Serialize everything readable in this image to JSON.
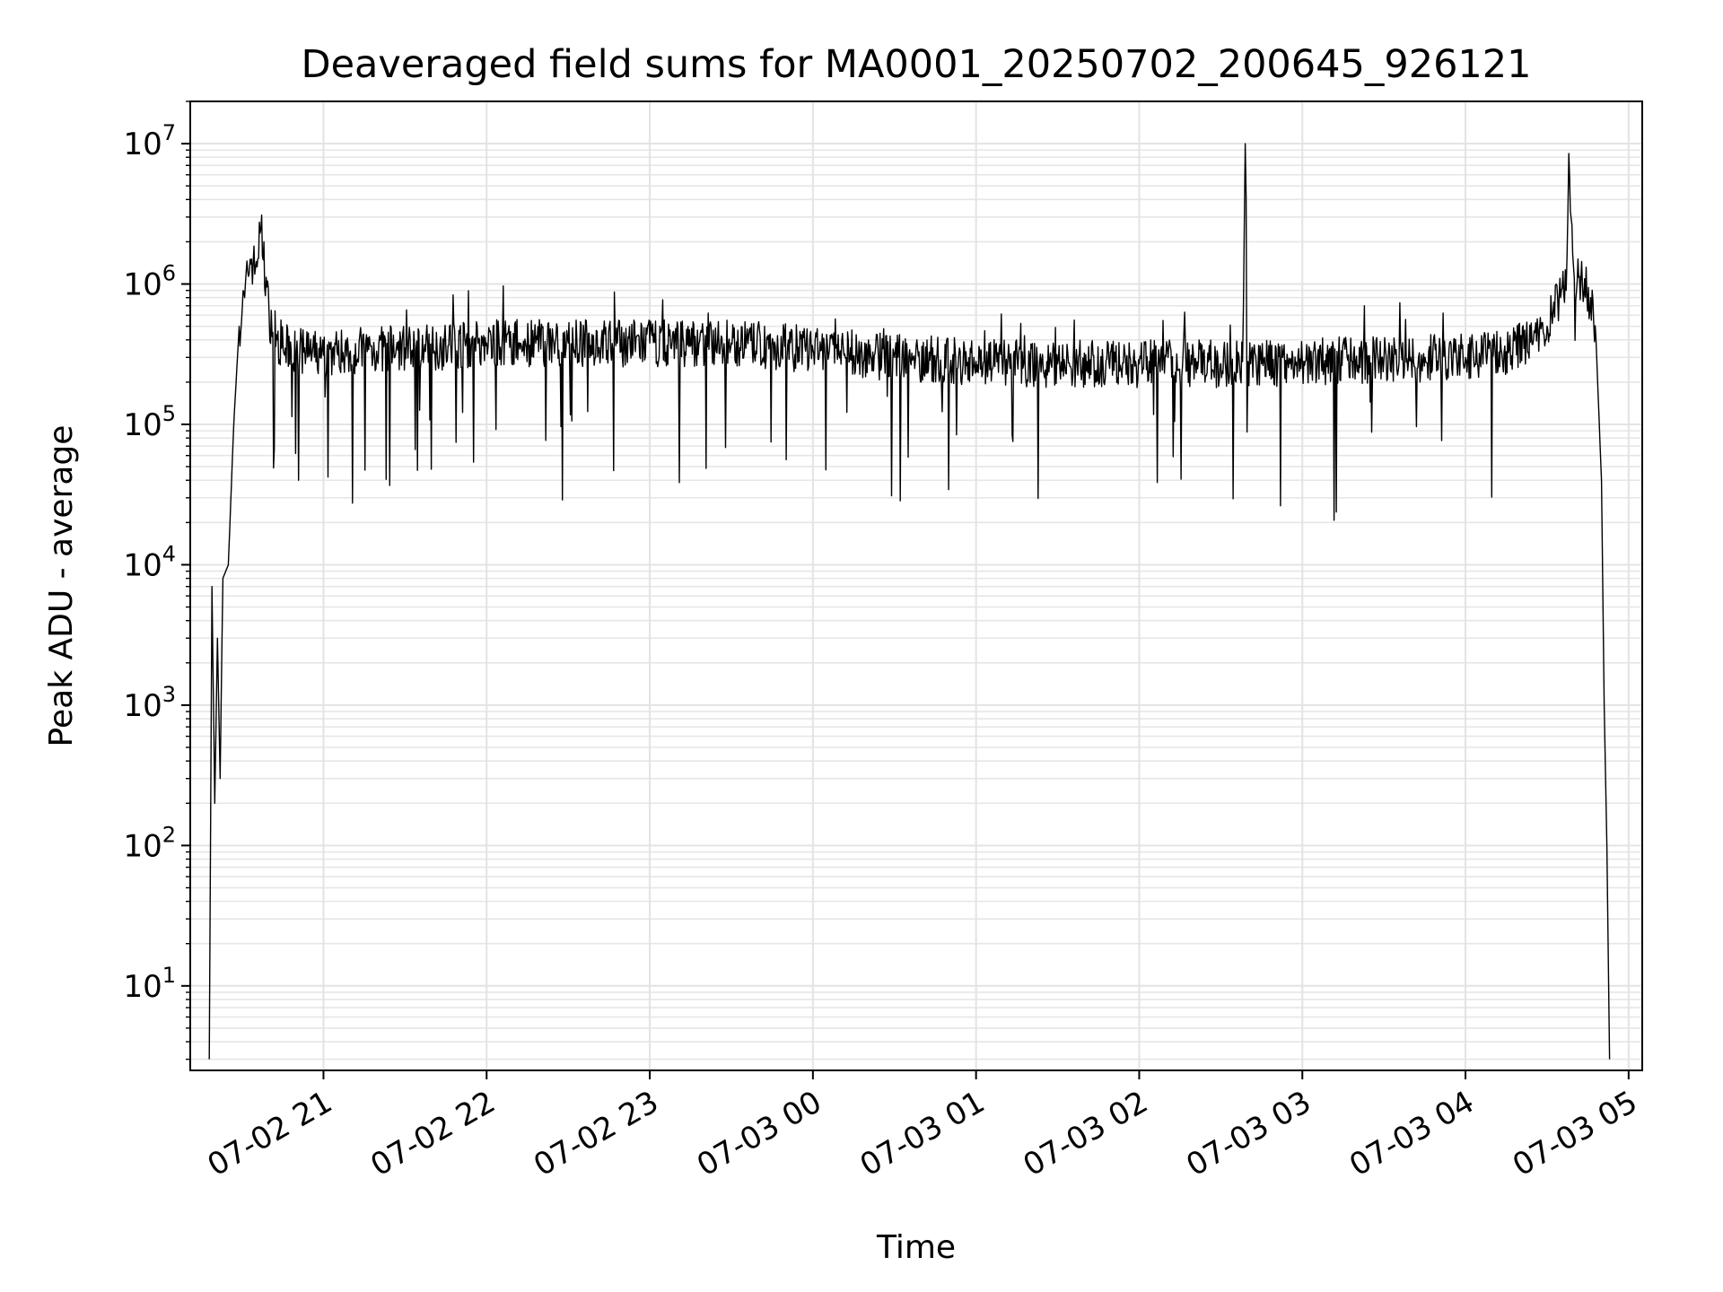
{
  "chart_data": {
    "type": "line",
    "title": "Deaveraged field sums for MA0001_20250702_200645_926121",
    "xlabel": "Time",
    "ylabel": "Peak ADU - average",
    "yscale": "log",
    "xlim": [
      "07-02 20:11",
      "07-03 05:05"
    ],
    "ylim": [
      2.5,
      20000000
    ],
    "grid": true,
    "line_color": "#000000",
    "x_ticks": [
      {
        "label": "07-02 21",
        "value": "07-02 21:00"
      },
      {
        "label": "07-02 22",
        "value": "07-02 22:00"
      },
      {
        "label": "07-02 23",
        "value": "07-02 23:00"
      },
      {
        "label": "07-03 00",
        "value": "07-03 00:00"
      },
      {
        "label": "07-03 01",
        "value": "07-03 01:00"
      },
      {
        "label": "07-03 02",
        "value": "07-03 02:00"
      },
      {
        "label": "07-03 03",
        "value": "07-03 03:00"
      },
      {
        "label": "07-03 04",
        "value": "07-03 04:00"
      },
      {
        "label": "07-03 05",
        "value": "07-03 05:00"
      }
    ],
    "y_ticks": [
      {
        "base": "10",
        "exp": "1",
        "value": 10
      },
      {
        "base": "10",
        "exp": "2",
        "value": 100
      },
      {
        "base": "10",
        "exp": "3",
        "value": 1000
      },
      {
        "base": "10",
        "exp": "4",
        "value": 10000
      },
      {
        "base": "10",
        "exp": "5",
        "value": 100000
      },
      {
        "base": "10",
        "exp": "6",
        "value": 1000000
      },
      {
        "base": "10",
        "exp": "7",
        "value": 10000000
      }
    ],
    "series": [
      {
        "x": [
          "07-02 20:18",
          "07-02 20:19",
          "07-02 20:20",
          "07-02 20:21",
          "07-02 20:22",
          "07-02 20:23",
          "07-02 20:25",
          "07-02 20:27",
          "07-02 20:29",
          "07-02 20:31",
          "07-02 20:33",
          "07-02 20:35",
          "07-02 20:37",
          "07-02 20:40",
          "07-02 20:43",
          "07-02 20:46",
          "07-02 20:50",
          "07-02 20:55",
          "07-02 21:00",
          "07-02 21:05",
          "07-02 21:15",
          "07-02 21:30",
          "07-02 21:45",
          "07-02 22:00",
          "07-02 22:30",
          "07-02 23:00",
          "07-02 23:30",
          "07-03 00:00",
          "07-03 00:30",
          "07-03 01:00",
          "07-03 01:30",
          "07-03 02:00",
          "07-03 02:30",
          "07-03 02:38",
          "07-03 02:39",
          "07-03 02:40",
          "07-03 02:41",
          "07-03 02:45",
          "07-03 03:00",
          "07-03 03:30",
          "07-03 04:00",
          "07-03 04:15",
          "07-03 04:25",
          "07-03 04:30",
          "07-03 04:35",
          "07-03 04:37",
          "07-03 04:38",
          "07-03 04:40",
          "07-03 04:43",
          "07-03 04:46",
          "07-03 04:48",
          "07-03 04:50",
          "07-03 04:51",
          "07-03 04:52",
          "07-03 04:53"
        ],
        "values": [
          3,
          7000,
          200,
          3000,
          300,
          8000,
          10000,
          100000,
          500000,
          800000,
          1500000,
          1300000,
          2500000,
          600000,
          400000,
          350000,
          330000,
          320000,
          310000,
          330000,
          340000,
          350000,
          360000,
          380000,
          380000,
          380000,
          380000,
          340000,
          300000,
          280000,
          270000,
          270000,
          270000,
          280000,
          10000000,
          280000,
          270000,
          270000,
          280000,
          290000,
          300000,
          330000,
          400000,
          500000,
          800000,
          900000,
          8500000,
          1100000,
          1000000,
          800000,
          400000,
          40000,
          1000,
          100,
          3
        ]
      }
    ]
  }
}
